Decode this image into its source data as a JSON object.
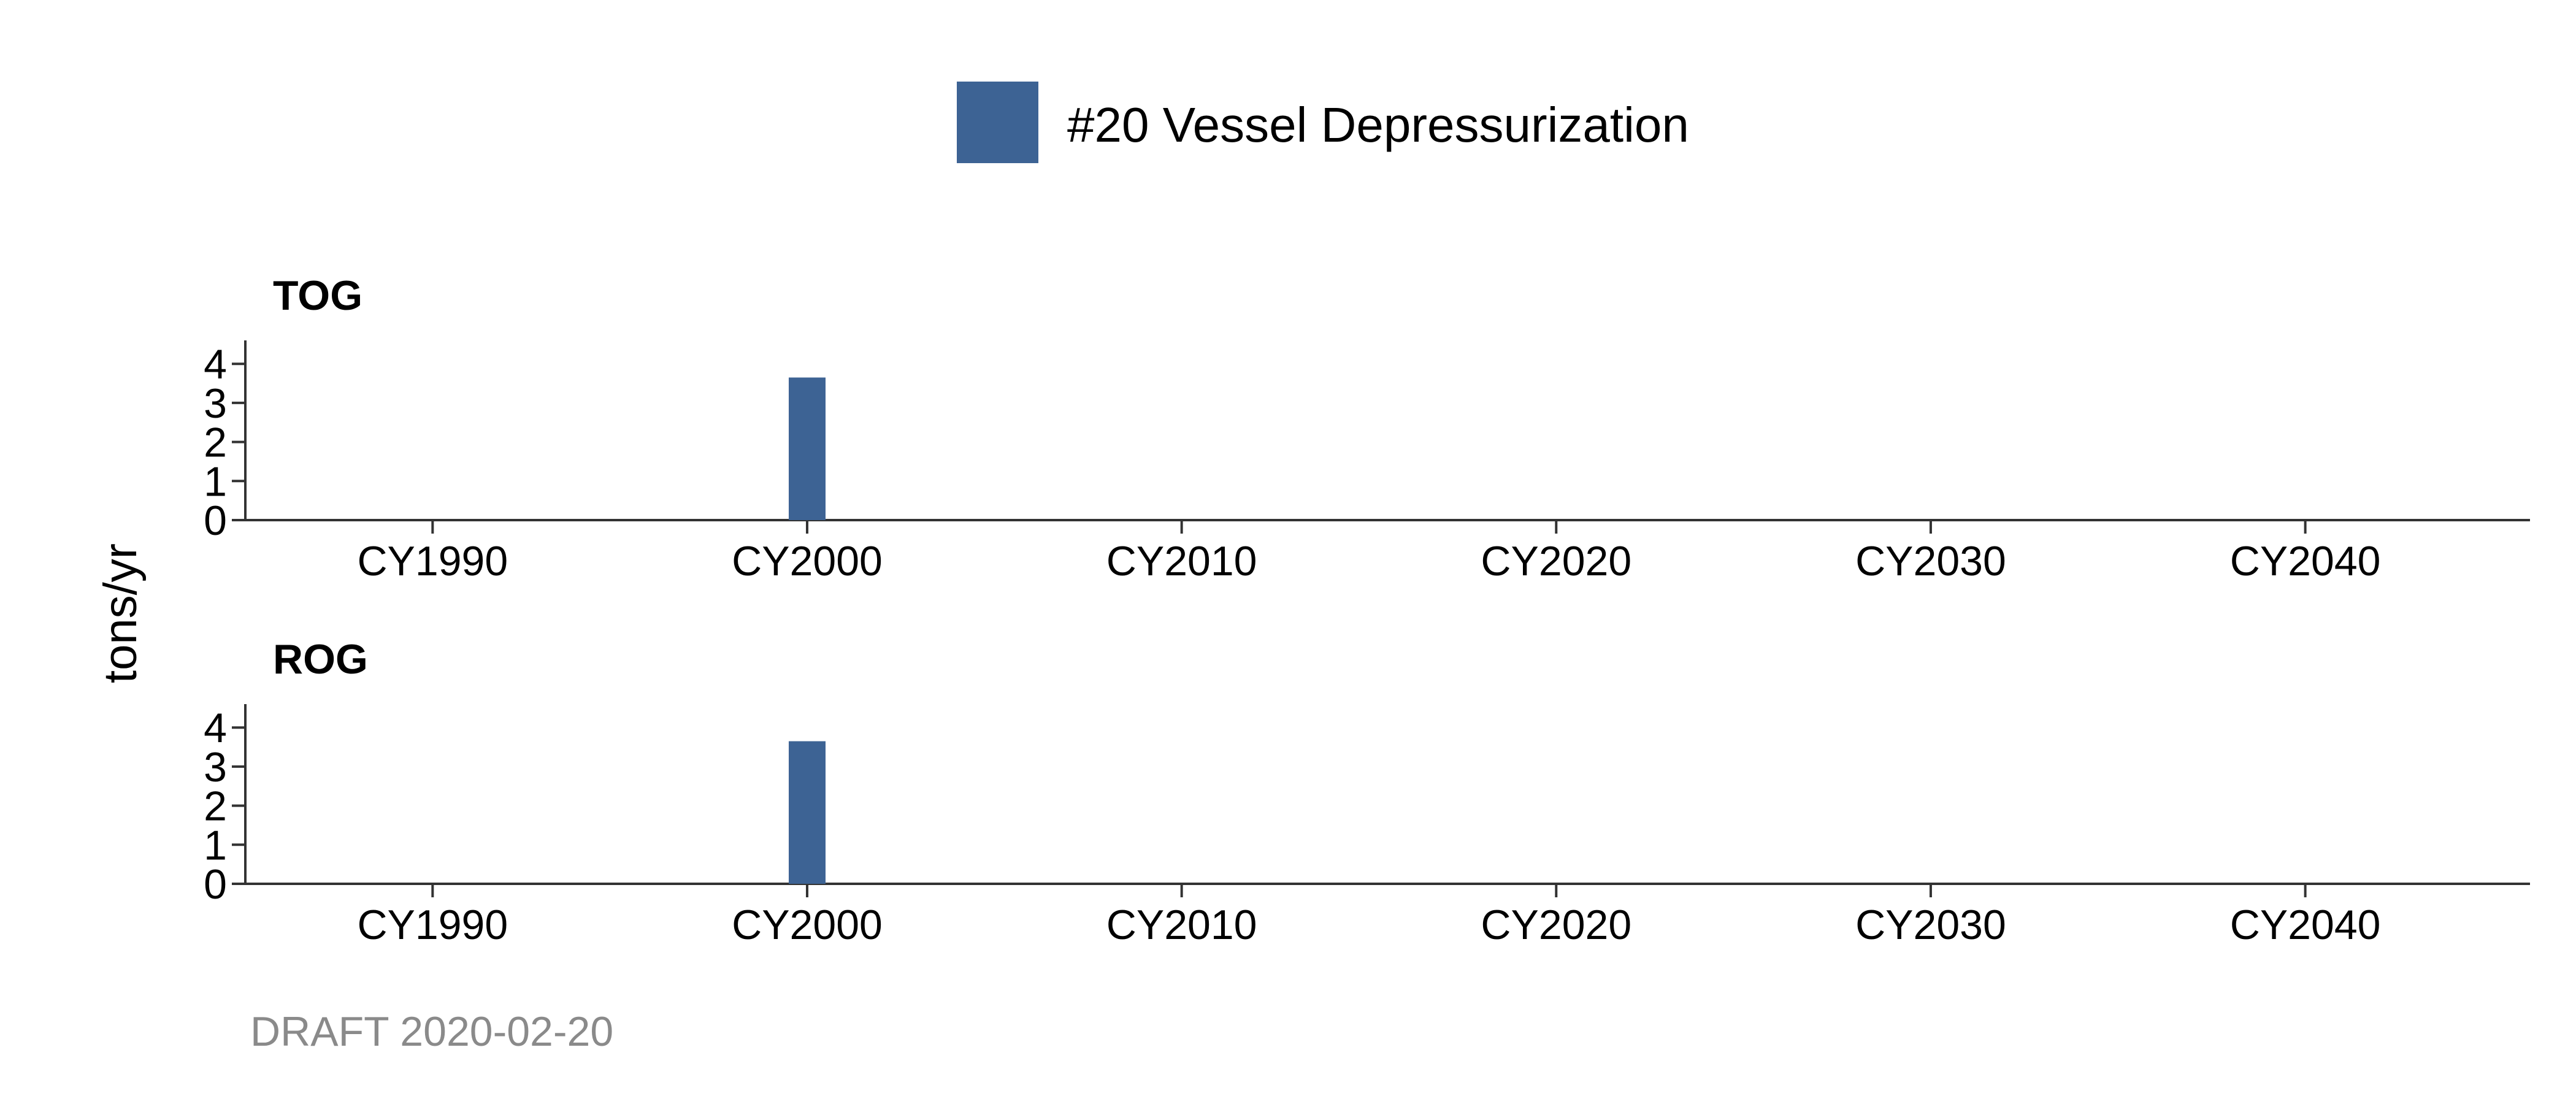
{
  "legend": {
    "label": "#20 Vessel Depressurization",
    "color": "#3d6394"
  },
  "caption": "DRAFT 2020-02-20",
  "chart_data": {
    "type": "bar",
    "ylabel": "tons/yr",
    "legend_position": "top-center",
    "grid": false,
    "xlim": [
      1985,
      2046
    ],
    "x_ticks": [
      1990,
      2000,
      2010,
      2020,
      2030,
      2040
    ],
    "x_tick_labels": [
      "CY1990",
      "CY2000",
      "CY2010",
      "CY2020",
      "CY2030",
      "CY2040"
    ],
    "panels": [
      {
        "title": "TOG",
        "ylim": [
          0,
          4.6
        ],
        "y_ticks": [
          0,
          1,
          2,
          3,
          4
        ],
        "series": [
          {
            "name": "#20 Vessel Depressurization",
            "x": [
              2000
            ],
            "values": [
              3.65
            ]
          }
        ]
      },
      {
        "title": "ROG",
        "ylim": [
          0,
          4.6
        ],
        "y_ticks": [
          0,
          1,
          2,
          3,
          4
        ],
        "series": [
          {
            "name": "#20 Vessel Depressurization",
            "x": [
              2000
            ],
            "values": [
              3.65
            ]
          }
        ]
      }
    ]
  }
}
